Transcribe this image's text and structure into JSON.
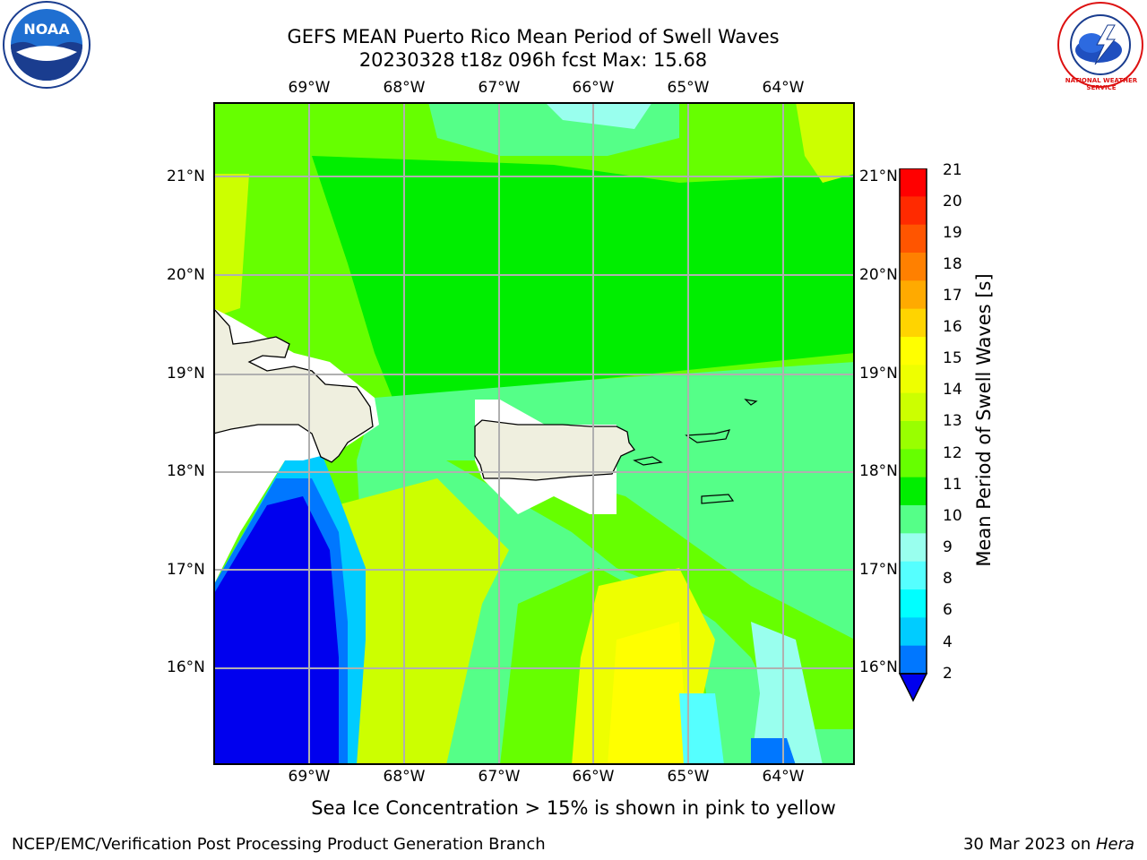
{
  "header": {
    "title_line1": "GEFS MEAN Puerto Rico Mean Period of Swell Waves",
    "title_line2": "20230328 t18z 096h fcst   Max: 15.68"
  },
  "axes": {
    "lon_labels": [
      "69°W",
      "68°W",
      "67°W",
      "66°W",
      "65°W",
      "64°W"
    ],
    "lat_labels": [
      "21°N",
      "20°N",
      "19°N",
      "18°N",
      "17°N",
      "16°N"
    ]
  },
  "colorbar": {
    "title": "Mean Period of Swell Waves [s]",
    "ticks": [
      "21",
      "20",
      "19",
      "18",
      "17",
      "16",
      "15",
      "14",
      "13",
      "12",
      "11",
      "10",
      "9",
      "8",
      "6",
      "4",
      "2"
    ],
    "colors": [
      "#ff0000",
      "#ff2a00",
      "#ff5500",
      "#ff8000",
      "#ffaa00",
      "#ffd400",
      "#ffff00",
      "#eeff00",
      "#ccff00",
      "#99ff00",
      "#66ff00",
      "#00ee00",
      "#55ff88",
      "#99ffee",
      "#55ffff",
      "#00ffff",
      "#00ccff",
      "#0077ff",
      "#0000ee"
    ]
  },
  "caption": "Sea Ice Concentration > 15% is shown in pink to yellow",
  "footer": {
    "left": "NCEP/EMC/Verification Post Processing Product Generation Branch",
    "right_date": "30 Mar 2023 on ",
    "right_machine": "Hera"
  },
  "logos": {
    "left": "NOAA",
    "right": "NATIONAL WEATHER SERVICE"
  }
}
